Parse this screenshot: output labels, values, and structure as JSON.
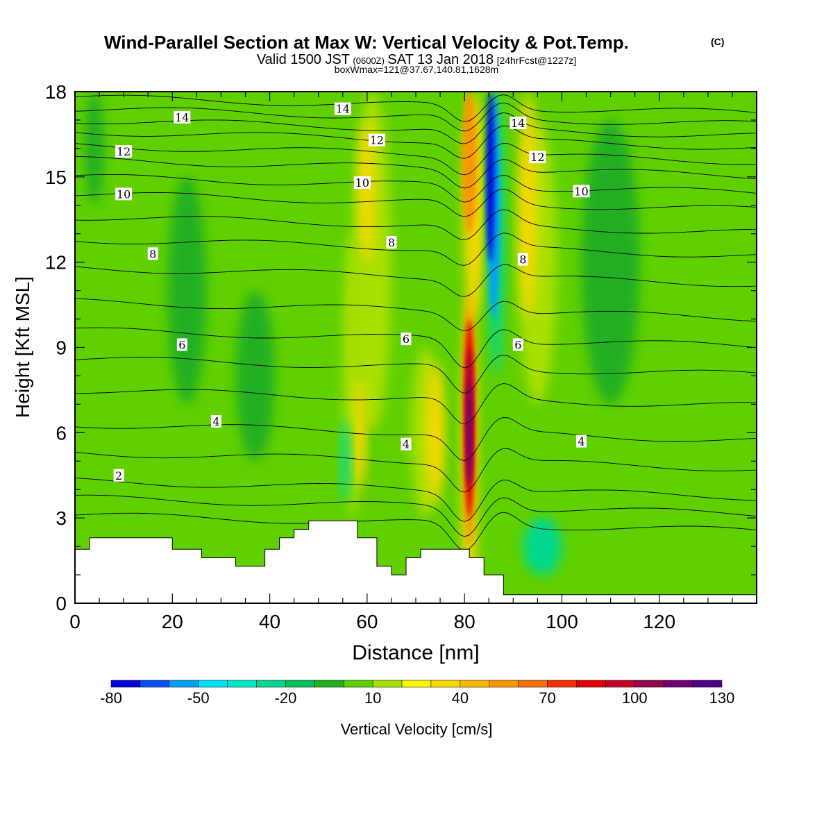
{
  "chart_data": {
    "type": "heatmap",
    "title": "Wind-Parallel Section at Max W: Vertical Velocity & Pot.Temp.",
    "title_mark": "(C)",
    "subtitle": {
      "pre": "Valid 1500 JST",
      "zulu": "(0600Z)",
      "mid": "SAT 13 Jan 2018",
      "fcst": "[24hrFcst@1227z]"
    },
    "subtitle2": "boxWmax=121@37.67,140.81,1628m",
    "xlabel": "Distance [nm]",
    "ylabel": "Height [Kft MSL]",
    "xlim": [
      0,
      140
    ],
    "ylim": [
      0,
      18
    ],
    "xticks": [
      0,
      20,
      40,
      60,
      80,
      100,
      120
    ],
    "yticks": [
      0,
      3,
      6,
      9,
      12,
      15,
      18
    ],
    "colorbar": {
      "label": "Vertical Velocity [cm/s]",
      "levels": [
        -80,
        -70,
        -60,
        -50,
        -40,
        -30,
        -20,
        -10,
        0,
        10,
        20,
        30,
        40,
        50,
        60,
        70,
        80,
        90,
        100,
        110,
        120,
        130
      ],
      "tick_labels": [
        "-80",
        "-50",
        "-20",
        "10",
        "40",
        "70",
        "100",
        "130"
      ],
      "tick_values": [
        -80,
        -50,
        -20,
        10,
        40,
        70,
        100,
        130
      ],
      "colors": [
        "#0000d8",
        "#0050f0",
        "#00a0f8",
        "#00e0f8",
        "#00e8c8",
        "#00d890",
        "#00c060",
        "#20b020",
        "#60d000",
        "#a8e000",
        "#f8f800",
        "#f8d800",
        "#f8b800",
        "#f89800",
        "#f87000",
        "#f83000",
        "#e00000",
        "#c00028",
        "#980050",
        "#700070",
        "#500088"
      ]
    },
    "theta_labels": [
      {
        "x": 9,
        "y": 4.5,
        "text": "2"
      },
      {
        "x": 29,
        "y": 6.4,
        "text": "4"
      },
      {
        "x": 68,
        "y": 5.6,
        "text": "4"
      },
      {
        "x": 104,
        "y": 5.7,
        "text": "4"
      },
      {
        "x": 22,
        "y": 9.1,
        "text": "6"
      },
      {
        "x": 68,
        "y": 9.3,
        "text": "6"
      },
      {
        "x": 91,
        "y": 9.1,
        "text": "6"
      },
      {
        "x": 16,
        "y": 12.3,
        "text": "8"
      },
      {
        "x": 65,
        "y": 12.7,
        "text": "8"
      },
      {
        "x": 92,
        "y": 12.1,
        "text": "8"
      },
      {
        "x": 10,
        "y": 14.4,
        "text": "10"
      },
      {
        "x": 59,
        "y": 14.8,
        "text": "10"
      },
      {
        "x": 104,
        "y": 14.5,
        "text": "10"
      },
      {
        "x": 10,
        "y": 15.9,
        "text": "12"
      },
      {
        "x": 62,
        "y": 16.3,
        "text": "12"
      },
      {
        "x": 95,
        "y": 15.7,
        "text": "12"
      },
      {
        "x": 22,
        "y": 17.1,
        "text": "14"
      },
      {
        "x": 55,
        "y": 17.4,
        "text": "14"
      },
      {
        "x": 91,
        "y": 16.9,
        "text": "14"
      }
    ],
    "terrain": [
      [
        0,
        1.9
      ],
      [
        3,
        1.9
      ],
      [
        3,
        2.3
      ],
      [
        20,
        2.3
      ],
      [
        20,
        1.9
      ],
      [
        26,
        1.9
      ],
      [
        26,
        1.6
      ],
      [
        33,
        1.6
      ],
      [
        33,
        1.3
      ],
      [
        39,
        1.3
      ],
      [
        39,
        1.9
      ],
      [
        42,
        1.9
      ],
      [
        42,
        2.3
      ],
      [
        45,
        2.3
      ],
      [
        45,
        2.6
      ],
      [
        48,
        2.6
      ],
      [
        48,
        2.9
      ],
      [
        58,
        2.9
      ],
      [
        58,
        2.3
      ],
      [
        62,
        2.3
      ],
      [
        62,
        1.3
      ],
      [
        65,
        1.3
      ],
      [
        65,
        1.0
      ],
      [
        68,
        1.0
      ],
      [
        68,
        1.6
      ],
      [
        71,
        1.6
      ],
      [
        71,
        1.9
      ],
      [
        81,
        1.9
      ],
      [
        81,
        1.6
      ],
      [
        84,
        1.6
      ],
      [
        84,
        1.0
      ],
      [
        88,
        1.0
      ],
      [
        88,
        0.3
      ],
      [
        140,
        0.3
      ]
    ]
  }
}
